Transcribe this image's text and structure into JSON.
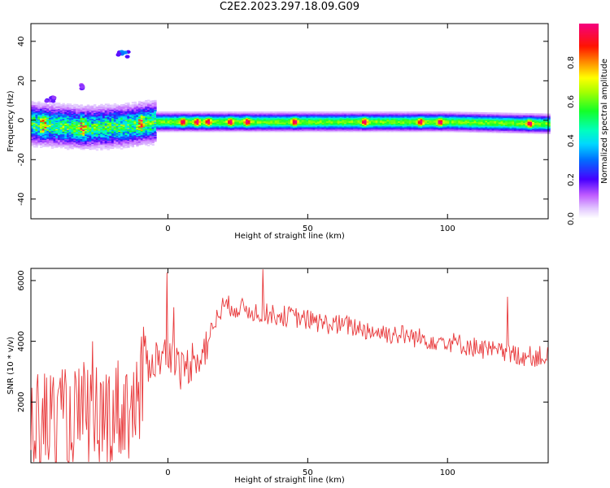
{
  "title": "C2E2.2023.297.18.09.G09",
  "chart_data": [
    {
      "type": "heatmap",
      "xlabel": "Height of straight line (km)",
      "ylabel": "Frequency (Hz)",
      "xlim": [
        -49,
        136
      ],
      "ylim": [
        -50,
        49
      ],
      "xticks": [
        0,
        50,
        100
      ],
      "yticks": [
        -40,
        -20,
        0,
        20,
        40
      ],
      "colorbar": {
        "label": "Normalized spectral amplitude",
        "range": [
          0,
          1
        ],
        "ticks": [
          0.0,
          0.2,
          0.4,
          0.6,
          0.8
        ]
      },
      "main_band": {
        "center_hz": [
          [
            -49,
            -2
          ],
          [
            -30,
            -4
          ],
          [
            -15,
            -3
          ],
          [
            -5,
            -1
          ],
          [
            0,
            -1
          ],
          [
            50,
            -1
          ],
          [
            100,
            -1
          ],
          [
            136,
            -2
          ]
        ],
        "half_width_hz": 3
      },
      "features": [
        {
          "x": [
            -18,
            -14
          ],
          "y": [
            31,
            35
          ],
          "amplitude": 0.25
        },
        {
          "x": [
            -31,
            -30
          ],
          "y": [
            16,
            18
          ],
          "amplitude": 0.15
        },
        {
          "x": [
            -44,
            -40
          ],
          "y": [
            9,
            12
          ],
          "amplitude": 0.15
        }
      ],
      "hot_spots": [
        -45,
        -31,
        -10,
        5,
        10,
        14,
        22,
        28,
        45,
        70,
        90,
        97,
        129
      ]
    },
    {
      "type": "line",
      "xlabel": "Height of straight line (km)",
      "ylabel": "SNR (10 * v/v)",
      "xlim": [
        -49,
        136
      ],
      "ylim": [
        0,
        6400
      ],
      "xticks": [
        0,
        50,
        100
      ],
      "yticks": [
        2000,
        4000,
        6000
      ],
      "grid": false,
      "series": [
        {
          "color": "#e8383a",
          "x": [
            -49,
            -45,
            -40,
            -35,
            -30,
            -25,
            -20,
            -15,
            -10,
            -8,
            -5,
            -2,
            0,
            3,
            5,
            8,
            10,
            12,
            15,
            18,
            20,
            25,
            30,
            35,
            40,
            45,
            50,
            55,
            60,
            65,
            70,
            75,
            80,
            85,
            90,
            95,
            100,
            105,
            110,
            115,
            120,
            125,
            130,
            136
          ],
          "y": [
            1400,
            1300,
            1500,
            1200,
            1600,
            1400,
            1700,
            1800,
            2000,
            3300,
            3400,
            3500,
            3600,
            3300,
            3000,
            3300,
            3600,
            3500,
            4200,
            4900,
            5200,
            5100,
            5000,
            4900,
            4850,
            4800,
            4700,
            4600,
            4550,
            4500,
            4400,
            4300,
            4250,
            4200,
            4100,
            4050,
            4000,
            3900,
            3800,
            3700,
            3600,
            3550,
            3500,
            3500
          ]
        }
      ]
    }
  ]
}
